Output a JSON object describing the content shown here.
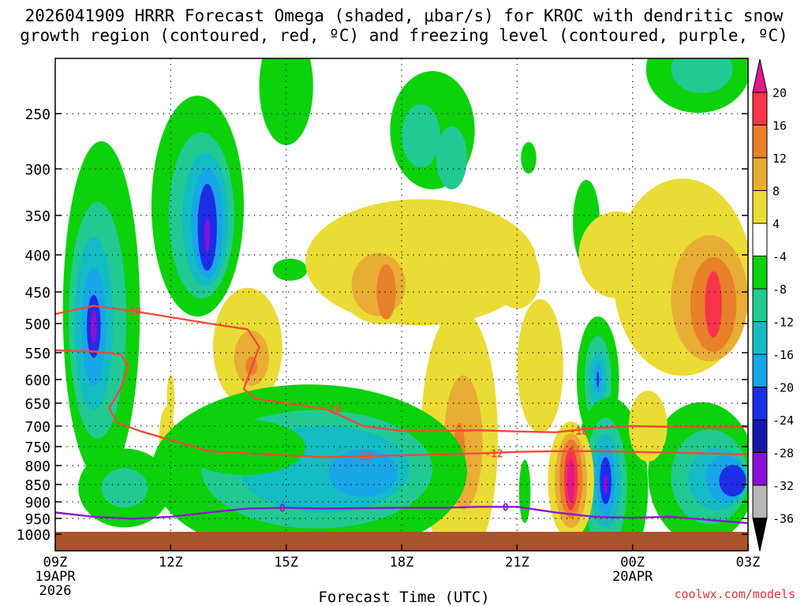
{
  "title_line1": "2026041909 HRRR Forecast Omega (shaded, μbar/s) for KROC with dendritic snow",
  "title_line2": "growth region (contoured, red, ºC) and freezing level (contoured, purple, ºC)",
  "credit": "coolwx.com/models",
  "colors": {
    "green": "#0bd20b",
    "teal_light": "#22c993",
    "teal": "#13bcc3",
    "cyan": "#17a6e8",
    "blue": "#1e2ee6",
    "purple": "#8a10d8",
    "yellow": "#ebdb35",
    "orange_light": "#e8ad35",
    "orange": "#e8802a",
    "red": "#f8344a",
    "dgz_line": "#f24a3a",
    "freezing_line": "#8a18c8",
    "ground": "#a9532c"
  },
  "chart_data": {
    "type": "heatmap",
    "title": "2026041909 HRRR Forecast Omega (shaded, μbar/s) for KROC with dendritic snow growth region (contoured, red, ºC) and freezing level (contoured, purple, ºC)",
    "xlabel": "Forecast Time (UTC)",
    "ylabel": "",
    "x_ticks": [
      {
        "label": "09Z",
        "sub1": "19APR",
        "sub2": "2026"
      },
      {
        "label": "12Z",
        "sub1": "",
        "sub2": ""
      },
      {
        "label": "15Z",
        "sub1": "",
        "sub2": ""
      },
      {
        "label": "18Z",
        "sub1": "",
        "sub2": ""
      },
      {
        "label": "21Z",
        "sub1": "",
        "sub2": ""
      },
      {
        "label": "00Z",
        "sub1": "20APR",
        "sub2": ""
      },
      {
        "label": "03Z",
        "sub1": "",
        "sub2": ""
      }
    ],
    "x_range_hours": [
      0,
      18
    ],
    "y_levels_hpa": [
      250,
      300,
      350,
      400,
      450,
      500,
      550,
      600,
      650,
      700,
      750,
      800,
      850,
      900,
      950,
      1000
    ],
    "colorbar": {
      "labels": [
        "20",
        "16",
        "12",
        "8",
        "4",
        "-4",
        "-8",
        "-12",
        "-16",
        "-20",
        "-24",
        "-28",
        "-32",
        "-36"
      ],
      "units": "μbar/s"
    },
    "contours": [
      {
        "name": "-12",
        "label": "-12",
        "color": "red",
        "points": [
          [
            0,
            546
          ],
          [
            1,
            548
          ],
          [
            1.7,
            553
          ],
          [
            1.9,
            575
          ],
          [
            1.7,
            620
          ],
          [
            1.4,
            660
          ],
          [
            1.6,
            692
          ],
          [
            2.2,
            712
          ],
          [
            3,
            734
          ],
          [
            4,
            762
          ],
          [
            5,
            768
          ],
          [
            6,
            773
          ],
          [
            7,
            778
          ],
          [
            8,
            775
          ],
          [
            9,
            773
          ],
          [
            10,
            771
          ],
          [
            11,
            768
          ],
          [
            12,
            764
          ],
          [
            13,
            762
          ],
          [
            14,
            762
          ],
          [
            15,
            764
          ],
          [
            16,
            766
          ],
          [
            17,
            768
          ],
          [
            18,
            771
          ]
        ]
      },
      {
        "name": "-18",
        "label": "-18",
        "color": "red",
        "points": [
          [
            0,
            485
          ],
          [
            1,
            472
          ],
          [
            2,
            480
          ],
          [
            3,
            490
          ],
          [
            4,
            500
          ],
          [
            5,
            510
          ],
          [
            5.3,
            540
          ],
          [
            4.9,
            620
          ],
          [
            5.2,
            640
          ],
          [
            6,
            650
          ],
          [
            7,
            662
          ],
          [
            7.5,
            680
          ],
          [
            8,
            700
          ],
          [
            9,
            712
          ],
          [
            10,
            712
          ],
          [
            11,
            710
          ],
          [
            12,
            713
          ],
          [
            13,
            715
          ],
          [
            14,
            705
          ],
          [
            15,
            700
          ],
          [
            16,
            702
          ],
          [
            17,
            703
          ],
          [
            18,
            702
          ]
        ]
      },
      {
        "name": "0",
        "label": "0",
        "color": "purple",
        "points": [
          [
            0,
            932
          ],
          [
            1,
            945
          ],
          [
            2,
            951
          ],
          [
            3,
            945
          ],
          [
            4,
            932
          ],
          [
            5,
            920
          ],
          [
            6,
            918
          ],
          [
            7,
            920
          ],
          [
            8,
            919
          ],
          [
            9,
            918
          ],
          [
            10,
            918
          ],
          [
            11,
            915
          ],
          [
            12,
            915
          ],
          [
            13,
            932
          ],
          [
            14,
            945
          ],
          [
            15,
            948
          ],
          [
            16,
            945
          ],
          [
            17,
            955
          ],
          [
            18,
            965
          ]
        ]
      }
    ],
    "omega_regions_note": "negative omega (green-blue-purple) = upward motion; positive (yellow-orange-red) = downward motion",
    "extrema": {
      "strongest_ascent": {
        "time_hr": 4,
        "level_hpa": 380,
        "value": -28
      },
      "strongest_ascent_low": {
        "time_hr": 1,
        "level_hpa": 505,
        "value": -24
      },
      "strongest_descent": {
        "time_hr": 13.4,
        "level_hpa": 835,
        "value": 20
      },
      "descent_upper": {
        "time_hr": 17,
        "level_hpa": 460,
        "value": 20
      }
    }
  }
}
